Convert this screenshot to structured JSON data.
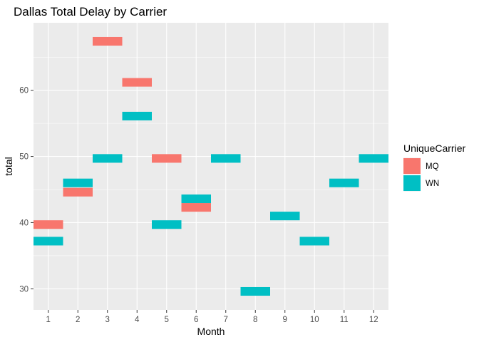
{
  "chart_data": {
    "type": "tile",
    "title": "Dallas Total Delay by Carrier",
    "xlabel": "Month",
    "ylabel": "total",
    "x_categories": [
      "1",
      "2",
      "3",
      "4",
      "5",
      "6",
      "7",
      "8",
      "9",
      "10",
      "11",
      "12"
    ],
    "y_ticks": [
      30,
      40,
      50,
      60
    ],
    "ylim": [
      26.8,
      70.2
    ],
    "tile_height": 1.3,
    "legend": {
      "title": "UniqueCarrier",
      "position": "right"
    },
    "series": [
      {
        "name": "MQ",
        "color": "#F8766D",
        "x": [
          "1",
          "2",
          "3",
          "4",
          "5",
          "6"
        ],
        "values": [
          39.7,
          44.6,
          67.4,
          61.2,
          49.7,
          42.3
        ]
      },
      {
        "name": "WN",
        "color": "#00BFC4",
        "x": [
          "1",
          "2",
          "3",
          "4",
          "5",
          "6",
          "7",
          "8",
          "9",
          "10",
          "11",
          "12"
        ],
        "values": [
          37.2,
          46.0,
          49.7,
          56.1,
          39.7,
          43.6,
          49.7,
          29.6,
          41.0,
          37.2,
          46.0,
          49.7
        ]
      }
    ]
  }
}
